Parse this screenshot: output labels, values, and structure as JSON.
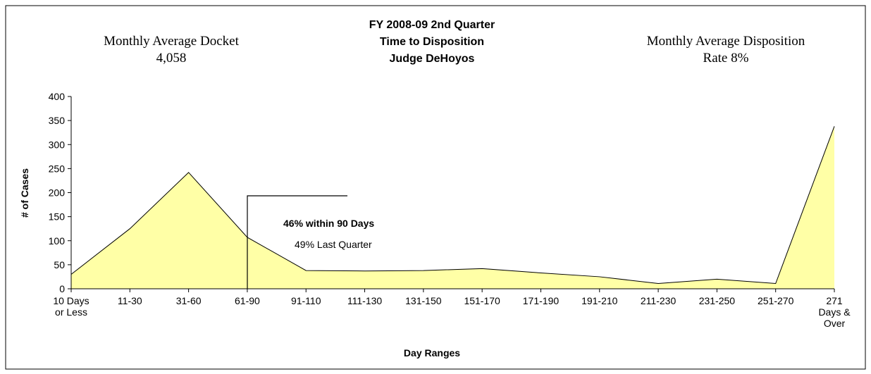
{
  "chart_data": {
    "type": "area",
    "title": [
      "FY 2008-09 2nd Quarter",
      "Time to Disposition",
      "Judge DeHoyos"
    ],
    "x_label": "Day Ranges",
    "y_label": "# of Cases",
    "annotations": [
      "Monthly Average Docket",
      "4,058",
      "Monthly Average Disposition",
      "Rate 8%",
      "46% within 90 Days",
      "49% Last Quarter"
    ],
    "categories": [
      "10 Days\nor Less",
      "11-30",
      "31-60",
      "61-90",
      "91-110",
      "111-130",
      "131-150",
      "151-170",
      "171-190",
      "191-210",
      "211-230",
      "231-250",
      "251-270",
      "271\nDays &\nOver"
    ],
    "values": [
      30,
      125,
      242,
      107,
      38,
      37,
      38,
      42,
      33,
      25,
      11,
      20,
      11,
      338
    ],
    "color": "#ffffa6",
    "ylim": [
      0,
      400
    ],
    "yticks": [
      0,
      50,
      100,
      150,
      200,
      250,
      300,
      350,
      400
    ]
  }
}
